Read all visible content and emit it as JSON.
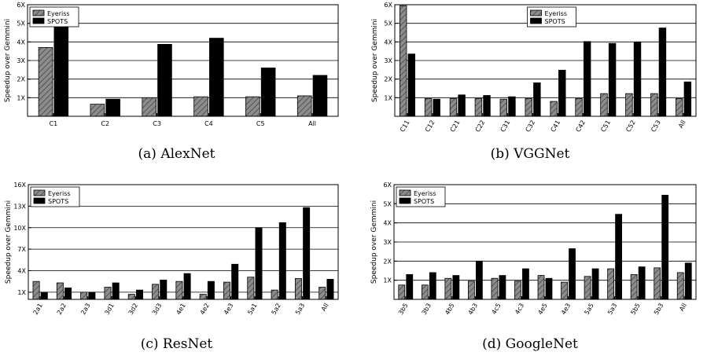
{
  "series_style": {
    "eyeriss": {
      "fill": "#8c8c8c",
      "stroke": "#000000"
    },
    "spots": {
      "fill": "#000000",
      "stroke": "#000000"
    }
  },
  "chart_data": [
    {
      "type": "bar",
      "caption": "(a) AlexNet",
      "ylabel": "Speedup over Gemmini",
      "ylim": [
        0,
        6
      ],
      "yticks": [
        1,
        2,
        3,
        4,
        5,
        6
      ],
      "ytick_labels": [
        "1X",
        "2X",
        "3X",
        "4X",
        "5X",
        "6X"
      ],
      "grid": true,
      "legend": "top-left",
      "rotate_xticks": false,
      "categories": [
        "C1",
        "C2",
        "C3",
        "C4",
        "C5",
        "All"
      ],
      "series": [
        {
          "name": "Eyeriss",
          "values": [
            3.7,
            0.65,
            1.0,
            1.05,
            1.05,
            1.1
          ]
        },
        {
          "name": "SPOTS",
          "values": [
            5.75,
            0.92,
            3.87,
            4.2,
            2.6,
            2.2
          ]
        }
      ]
    },
    {
      "type": "bar",
      "caption": "(b) VGGNet",
      "ylabel": "Speedup over Gemmini",
      "ylim": [
        0,
        6
      ],
      "yticks": [
        1,
        2,
        3,
        4,
        5,
        6
      ],
      "ytick_labels": [
        "1X",
        "2X",
        "3X",
        "4X",
        "5X",
        "6X"
      ],
      "grid": true,
      "legend": "top-center",
      "rotate_xticks": true,
      "categories": [
        "C11",
        "C12",
        "C21",
        "C22",
        "C31",
        "C32",
        "C41",
        "C42",
        "C51",
        "C52",
        "C53",
        "All"
      ],
      "series": [
        {
          "name": "Eyeriss",
          "values": [
            5.95,
            0.95,
            0.95,
            0.95,
            0.92,
            0.95,
            0.8,
            0.95,
            1.22,
            1.22,
            1.22,
            0.95
          ]
        },
        {
          "name": "SPOTS",
          "values": [
            3.35,
            0.92,
            1.15,
            1.12,
            1.05,
            1.8,
            2.48,
            4.02,
            3.92,
            4.0,
            4.75,
            1.85
          ]
        }
      ]
    },
    {
      "type": "bar",
      "caption": "(c) ResNet",
      "ylabel": "Speedup over Gemmini",
      "ylim": [
        0,
        16
      ],
      "yticks": [
        1,
        4,
        7,
        10,
        13,
        16
      ],
      "ytick_labels": [
        "1X",
        "4X",
        "7X",
        "10X",
        "13X",
        "16X"
      ],
      "grid": true,
      "legend": "top-left",
      "rotate_xticks": true,
      "categories": [
        "2a1",
        "2a2",
        "2a3",
        "3d1",
        "3d2",
        "3d3",
        "4e1",
        "4e2",
        "4e3",
        "5a1",
        "5a2",
        "5a3",
        "All"
      ],
      "series": [
        {
          "name": "Eyeriss",
          "values": [
            2.5,
            2.3,
            1.0,
            1.7,
            0.7,
            2.1,
            2.5,
            0.7,
            2.4,
            3.1,
            1.3,
            2.9,
            1.7
          ]
        },
        {
          "name": "SPOTS",
          "values": [
            1.0,
            1.6,
            1.0,
            2.3,
            1.3,
            2.7,
            3.6,
            2.5,
            4.9,
            10.0,
            10.7,
            12.8,
            2.8
          ]
        }
      ]
    },
    {
      "type": "bar",
      "caption": "(d) GoogleNet",
      "ylabel": "Speedup over Gemmini",
      "ylim": [
        0,
        6
      ],
      "yticks": [
        1,
        2,
        3,
        4,
        5,
        6
      ],
      "ytick_labels": [
        "1X",
        "2X",
        "3X",
        "4X",
        "5X",
        "6X"
      ],
      "grid": true,
      "legend": "top-left",
      "rotate_xticks": true,
      "categories": [
        "3b5",
        "3b3",
        "4b5",
        "4b3",
        "4c5",
        "4c3",
        "4e5",
        "4e3",
        "5a5",
        "5a3",
        "5b5",
        "5b3",
        "All"
      ],
      "series": [
        {
          "name": "Eyeriss",
          "values": [
            0.75,
            0.75,
            1.1,
            0.95,
            1.1,
            0.95,
            1.25,
            0.9,
            1.2,
            1.6,
            1.3,
            1.65,
            1.4
          ]
        },
        {
          "name": "SPOTS",
          "values": [
            1.3,
            1.4,
            1.25,
            2.0,
            1.25,
            1.6,
            1.1,
            2.65,
            1.6,
            4.45,
            1.7,
            5.45,
            1.9
          ]
        }
      ]
    }
  ]
}
